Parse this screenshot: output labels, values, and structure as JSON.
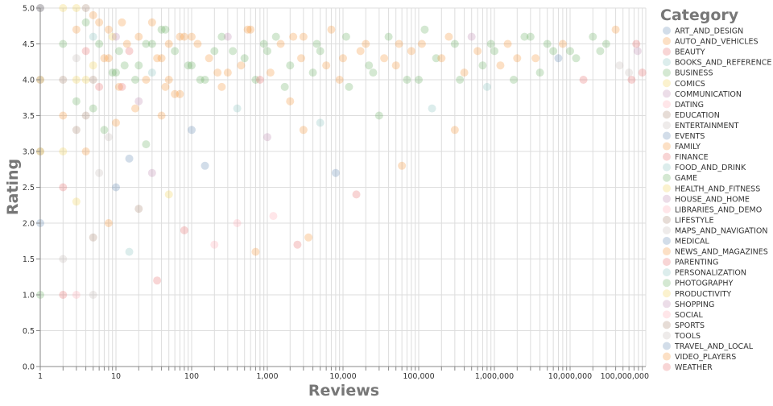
{
  "chart_data": {
    "type": "scatter",
    "xlabel": "Reviews",
    "ylabel": "Rating",
    "x_scale": "log",
    "xlim": [
      1,
      100000000
    ],
    "ylim": [
      0,
      5
    ],
    "grid": true,
    "x_ticks": [
      "1",
      "10",
      "100",
      "1,000",
      "10,000",
      "100,000",
      "1,000,000",
      "10,000,000",
      "100,000,000"
    ],
    "y_ticks": [
      "0.0",
      "0.5",
      "1.0",
      "1.5",
      "2.0",
      "2.5",
      "3.0",
      "3.5",
      "4.0",
      "4.5",
      "5.0"
    ],
    "legend": {
      "title": "Category",
      "placement": "right",
      "entries": [
        "ART_AND_DESIGN",
        "AUTO_AND_VEHICLES",
        "BEAUTY",
        "BOOKS_AND_REFERENCE",
        "BUSINESS",
        "COMICS",
        "COMMUNICATION",
        "DATING",
        "EDUCATION",
        "ENTERTAINMENT",
        "EVENTS",
        "FAMILY",
        "FINANCE",
        "FOOD_AND_DRINK",
        "GAME",
        "HEALTH_AND_FITNESS",
        "HOUSE_AND_HOME",
        "LIBRARIES_AND_DEMO",
        "LIFESTYLE",
        "MAPS_AND_NAVIGATION",
        "MEDICAL",
        "NEWS_AND_MAGAZINES",
        "PARENTING",
        "PERSONALIZATION",
        "PHOTOGRAPHY",
        "PRODUCTIVITY",
        "SHOPPING",
        "SOCIAL",
        "SPORTS",
        "TOOLS",
        "TRAVEL_AND_LOCAL",
        "VIDEO_PLAYERS",
        "WEATHER"
      ]
    },
    "palette": [
      "#4c78a8",
      "#f58518",
      "#e45756",
      "#72b7b2",
      "#54a24b",
      "#eeca3b",
      "#b279a2",
      "#ff9da6",
      "#9d755d",
      "#bab0ac"
    ],
    "point_opacity": 0.25,
    "points_format": [
      "reviews",
      "rating",
      "category_index"
    ],
    "points": [
      [
        1,
        5.0,
        0
      ],
      [
        1,
        4.0,
        5
      ],
      [
        1,
        3.0,
        8
      ],
      [
        1,
        2.0,
        10
      ],
      [
        1,
        1.0,
        14
      ],
      [
        1,
        5.0,
        8
      ],
      [
        1,
        4.0,
        8
      ],
      [
        1,
        3.0,
        5
      ],
      [
        2,
        5.0,
        5
      ],
      [
        2,
        4.5,
        14
      ],
      [
        2,
        4.0,
        8
      ],
      [
        2,
        3.5,
        1
      ],
      [
        2,
        3.0,
        15
      ],
      [
        2,
        2.5,
        2
      ],
      [
        2,
        1.5,
        9
      ],
      [
        2,
        1.0,
        2
      ],
      [
        3,
        5.0,
        15
      ],
      [
        3,
        4.7,
        1
      ],
      [
        3,
        4.0,
        5
      ],
      [
        3,
        3.7,
        4
      ],
      [
        3,
        3.3,
        8
      ],
      [
        3,
        2.3,
        5
      ],
      [
        3,
        1.0,
        7
      ],
      [
        3,
        4.3,
        9
      ],
      [
        4,
        5.0,
        8
      ],
      [
        4,
        4.8,
        14
      ],
      [
        4,
        4.4,
        12
      ],
      [
        4,
        3.0,
        1
      ],
      [
        4,
        4.0,
        15
      ],
      [
        4,
        3.5,
        8
      ],
      [
        5,
        4.9,
        1
      ],
      [
        5,
        4.6,
        3
      ],
      [
        5,
        4.2,
        5
      ],
      [
        5,
        3.6,
        4
      ],
      [
        5,
        1.8,
        8
      ],
      [
        5,
        1.0,
        9
      ],
      [
        5,
        4.0,
        18
      ],
      [
        6,
        4.5,
        14
      ],
      [
        6,
        3.9,
        2
      ],
      [
        6,
        2.7,
        9
      ],
      [
        6,
        4.8,
        11
      ],
      [
        7,
        4.3,
        1
      ],
      [
        7,
        3.3,
        4
      ],
      [
        8,
        4.3,
        11
      ],
      [
        8,
        4.7,
        1
      ],
      [
        8,
        3.2,
        19
      ],
      [
        8,
        2.0,
        21
      ],
      [
        9,
        4.1,
        14
      ],
      [
        9,
        4.6,
        15
      ],
      [
        10,
        4.1,
        4
      ],
      [
        10,
        4.6,
        16
      ],
      [
        10,
        3.4,
        1
      ],
      [
        10,
        2.5,
        10
      ],
      [
        11,
        4.4,
        24
      ],
      [
        11,
        3.9,
        11
      ],
      [
        12,
        4.8,
        1
      ],
      [
        12,
        3.9,
        22
      ],
      [
        13,
        4.2,
        4
      ],
      [
        14,
        4.5,
        11
      ],
      [
        15,
        4.4,
        12
      ],
      [
        15,
        2.9,
        30
      ],
      [
        15,
        1.6,
        23
      ],
      [
        18,
        4.0,
        14
      ],
      [
        18,
        3.6,
        1
      ],
      [
        20,
        4.2,
        14
      ],
      [
        20,
        4.6,
        11
      ],
      [
        20,
        3.7,
        26
      ],
      [
        20,
        2.2,
        28
      ],
      [
        25,
        4.0,
        1
      ],
      [
        25,
        3.1,
        24
      ],
      [
        25,
        4.5,
        4
      ],
      [
        30,
        4.5,
        14
      ],
      [
        30,
        4.1,
        3
      ],
      [
        30,
        2.7,
        16
      ],
      [
        30,
        4.8,
        11
      ],
      [
        35,
        1.2,
        2
      ],
      [
        35,
        4.3,
        1
      ],
      [
        40,
        4.3,
        21
      ],
      [
        40,
        3.5,
        11
      ],
      [
        40,
        4.7,
        14
      ],
      [
        45,
        4.7,
        4
      ],
      [
        45,
        3.9,
        1
      ],
      [
        50,
        4.0,
        1
      ],
      [
        50,
        2.4,
        5
      ],
      [
        50,
        4.5,
        11
      ],
      [
        60,
        4.4,
        14
      ],
      [
        60,
        3.8,
        1
      ],
      [
        70,
        3.8,
        31
      ],
      [
        70,
        4.6,
        11
      ],
      [
        80,
        4.6,
        1
      ],
      [
        80,
        1.9,
        12
      ],
      [
        90,
        4.2,
        14
      ],
      [
        100,
        4.2,
        4
      ],
      [
        100,
        3.3,
        20
      ],
      [
        100,
        4.6,
        1
      ],
      [
        120,
        4.5,
        11
      ],
      [
        130,
        4.0,
        14
      ],
      [
        150,
        4.0,
        24
      ],
      [
        150,
        2.8,
        10
      ],
      [
        170,
        4.3,
        1
      ],
      [
        200,
        4.4,
        14
      ],
      [
        200,
        1.7,
        7
      ],
      [
        220,
        4.1,
        11
      ],
      [
        250,
        3.9,
        1
      ],
      [
        250,
        4.6,
        4
      ],
      [
        300,
        4.6,
        16
      ],
      [
        300,
        4.1,
        11
      ],
      [
        350,
        4.4,
        14
      ],
      [
        400,
        3.6,
        3
      ],
      [
        400,
        2.0,
        17
      ],
      [
        450,
        4.2,
        1
      ],
      [
        500,
        4.3,
        14
      ],
      [
        550,
        4.7,
        11
      ],
      [
        600,
        4.7,
        1
      ],
      [
        700,
        1.6,
        1
      ],
      [
        700,
        4.0,
        14
      ],
      [
        800,
        4.0,
        12
      ],
      [
        900,
        4.5,
        4
      ],
      [
        1000,
        4.4,
        4
      ],
      [
        1000,
        3.2,
        6
      ],
      [
        1100,
        4.1,
        1
      ],
      [
        1200,
        2.1,
        17
      ],
      [
        1300,
        4.6,
        14
      ],
      [
        1500,
        4.5,
        11
      ],
      [
        1700,
        3.9,
        14
      ],
      [
        2000,
        4.2,
        14
      ],
      [
        2000,
        3.7,
        21
      ],
      [
        2200,
        4.6,
        1
      ],
      [
        2500,
        1.7,
        12
      ],
      [
        2800,
        4.3,
        11
      ],
      [
        3000,
        4.6,
        1
      ],
      [
        3000,
        3.3,
        1
      ],
      [
        3500,
        1.8,
        1
      ],
      [
        4000,
        4.1,
        24
      ],
      [
        4500,
        4.5,
        14
      ],
      [
        5000,
        4.4,
        14
      ],
      [
        5000,
        3.4,
        3
      ],
      [
        6000,
        4.2,
        11
      ],
      [
        7000,
        4.7,
        11
      ],
      [
        8000,
        2.7,
        10
      ],
      [
        9000,
        4.0,
        1
      ],
      [
        10000,
        4.3,
        1
      ],
      [
        11000,
        4.6,
        14
      ],
      [
        12000,
        3.9,
        14
      ],
      [
        15000,
        2.4,
        2
      ],
      [
        17000,
        4.4,
        11
      ],
      [
        20000,
        4.5,
        11
      ],
      [
        22000,
        4.2,
        14
      ],
      [
        25000,
        4.1,
        24
      ],
      [
        30000,
        3.5,
        4
      ],
      [
        35000,
        4.3,
        1
      ],
      [
        40000,
        4.6,
        14
      ],
      [
        50000,
        4.2,
        1
      ],
      [
        55000,
        4.5,
        11
      ],
      [
        60000,
        2.8,
        21
      ],
      [
        70000,
        4.0,
        14
      ],
      [
        80000,
        4.4,
        11
      ],
      [
        100000,
        4.0,
        14
      ],
      [
        110000,
        4.5,
        1
      ],
      [
        120000,
        4.7,
        4
      ],
      [
        150000,
        3.6,
        3
      ],
      [
        170000,
        4.3,
        14
      ],
      [
        200000,
        4.3,
        1
      ],
      [
        250000,
        4.6,
        11
      ],
      [
        300000,
        4.5,
        14
      ],
      [
        300000,
        3.3,
        1
      ],
      [
        350000,
        4.0,
        14
      ],
      [
        400000,
        4.1,
        11
      ],
      [
        500000,
        4.6,
        16
      ],
      [
        600000,
        4.4,
        1
      ],
      [
        700000,
        4.2,
        24
      ],
      [
        800000,
        3.9,
        3
      ],
      [
        900000,
        4.5,
        14
      ],
      [
        1000000,
        4.4,
        14
      ],
      [
        1200000,
        4.2,
        11
      ],
      [
        1500000,
        4.5,
        1
      ],
      [
        1800000,
        4.0,
        14
      ],
      [
        2000000,
        4.3,
        11
      ],
      [
        2500000,
        4.6,
        14
      ],
      [
        3000000,
        4.6,
        4
      ],
      [
        3500000,
        4.3,
        1
      ],
      [
        4000000,
        4.1,
        14
      ],
      [
        5000000,
        4.5,
        24
      ],
      [
        6000000,
        4.4,
        14
      ],
      [
        7000000,
        4.3,
        10
      ],
      [
        8000000,
        4.5,
        11
      ],
      [
        10000000,
        4.4,
        14
      ],
      [
        12000000,
        4.3,
        24
      ],
      [
        15000000,
        4.0,
        2
      ],
      [
        20000000,
        4.6,
        14
      ],
      [
        25000000,
        4.4,
        14
      ],
      [
        30000000,
        4.5,
        24
      ],
      [
        40000000,
        4.7,
        11
      ],
      [
        45000000,
        4.2,
        9
      ],
      [
        60000000,
        4.1,
        9
      ],
      [
        65000000,
        4.0,
        2
      ],
      [
        75000000,
        4.5,
        2
      ],
      [
        78000000,
        4.4,
        6
      ],
      [
        90000000,
        4.1,
        2
      ]
    ]
  }
}
